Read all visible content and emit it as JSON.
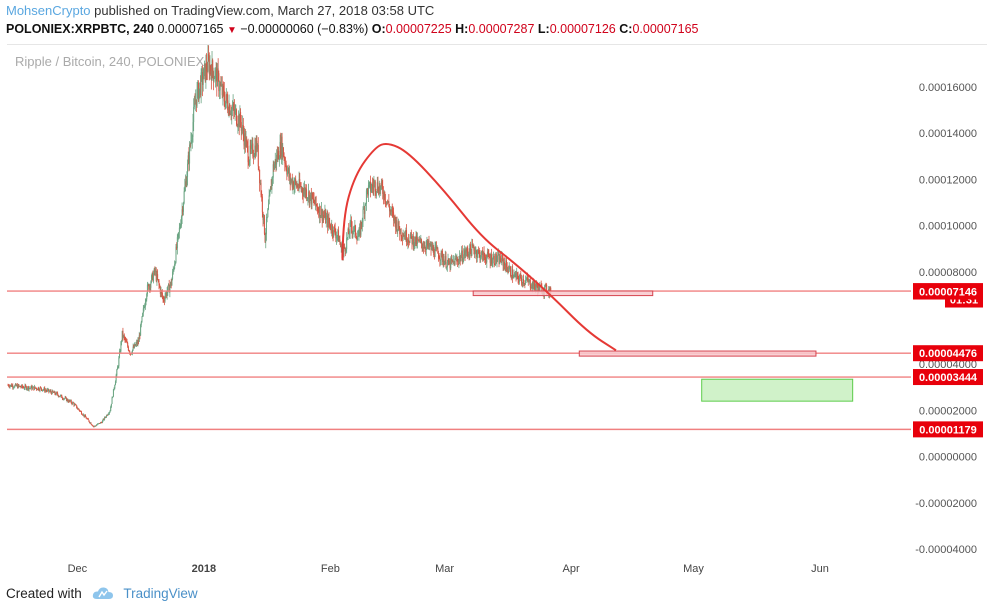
{
  "header": {
    "author": "MohsenCrypto",
    "published_text": "published on TradingView.com, March 27, 2018 03:58 UTC",
    "symbol": "POLONIEX:XRPBTC, 240",
    "last_price": "0.00007165",
    "arrow": "▼",
    "change": "−0.00000060 (−0.83%)",
    "open_label": "O:",
    "open": "0.00007225",
    "high_label": "H:",
    "high": "0.00007287",
    "low_label": "L:",
    "low": "0.00007126",
    "close_label": "C:",
    "close": "0.00007165"
  },
  "footer": {
    "created_with": "Created with",
    "brand": "TradingView"
  },
  "colors": {
    "up": "#6ba583",
    "down": "#d75442",
    "level_line": "#f08080",
    "label_bg": "#e8000b",
    "zone_red_fill": "#f8c8cc",
    "zone_green_fill": "#c8f0c0",
    "curve": "#e53935"
  },
  "chart_data": {
    "type": "candlestick",
    "title": "Ripple / Bitcoin, 240, POLONIEX",
    "ylim": [
      -4.5e-05,
      0.000172
    ],
    "y_ticks": [
      "0.00016000",
      "0.00014000",
      "0.00012000",
      "0.00010000",
      "0.00008000",
      "0.00004000",
      "0.00002000",
      "0.00000000",
      "-0.00002000",
      "-0.00004000"
    ],
    "y_tick_values": [
      0.00016,
      0.00014,
      0.00012,
      0.0001,
      8e-05,
      4e-05,
      2e-05,
      0.0,
      -2e-05,
      -4e-05
    ],
    "x_ticks": [
      "Dec",
      "2018",
      "Feb",
      "Mar",
      "Apr",
      "May",
      "Jun"
    ],
    "x_tick_dates": [
      "2017-12-01",
      "2018-01-01",
      "2018-02-01",
      "2018-03-01",
      "2018-04-01",
      "2018-05-01",
      "2018-06-01"
    ],
    "x_range": [
      "2017-11-14",
      "2018-06-13"
    ],
    "price_path": [
      [
        "2017-11-14",
        3.1e-05
      ],
      [
        "2017-11-18",
        3e-05
      ],
      [
        "2017-11-22",
        2.95e-05
      ],
      [
        "2017-11-26",
        2.7e-05
      ],
      [
        "2017-11-30",
        2.3e-05
      ],
      [
        "2017-12-03",
        1.7e-05
      ],
      [
        "2017-12-05",
        1.3e-05
      ],
      [
        "2017-12-07",
        1.5e-05
      ],
      [
        "2017-12-09",
        2e-05
      ],
      [
        "2017-12-11",
        4e-05
      ],
      [
        "2017-12-12",
        5.3e-05
      ],
      [
        "2017-12-14",
        4.5e-05
      ],
      [
        "2017-12-16",
        5e-05
      ],
      [
        "2017-12-18",
        7.2e-05
      ],
      [
        "2017-12-20",
        8e-05
      ],
      [
        "2017-12-22",
        6.8e-05
      ],
      [
        "2017-12-24",
        7.5e-05
      ],
      [
        "2017-12-26",
        9.8e-05
      ],
      [
        "2017-12-28",
        0.000125
      ],
      [
        "2017-12-30",
        0.000155
      ],
      [
        "2018-01-02",
        0.00017
      ],
      [
        "2018-01-04",
        0.000165
      ],
      [
        "2018-01-06",
        0.000155
      ],
      [
        "2018-01-08",
        0.00015
      ],
      [
        "2018-01-10",
        0.000145
      ],
      [
        "2018-01-12",
        0.00013
      ],
      [
        "2018-01-14",
        0.000135
      ],
      [
        "2018-01-16",
        9.5e-05
      ],
      [
        "2018-01-18",
        0.000125
      ],
      [
        "2018-01-20",
        0.000135
      ],
      [
        "2018-01-22",
        0.00012
      ],
      [
        "2018-01-24",
        0.000117
      ],
      [
        "2018-01-26",
        0.000115
      ],
      [
        "2018-01-28",
        0.00011
      ],
      [
        "2018-01-30",
        0.000105
      ],
      [
        "2018-02-01",
        0.0001
      ],
      [
        "2018-02-03",
        9.5e-05
      ],
      [
        "2018-02-04",
        8.7e-05
      ],
      [
        "2018-02-06",
        0.0001
      ],
      [
        "2018-02-08",
        9.5e-05
      ],
      [
        "2018-02-10",
        0.000115
      ],
      [
        "2018-02-12",
        0.000118
      ],
      [
        "2018-02-14",
        0.000115
      ],
      [
        "2018-02-16",
        0.000105
      ],
      [
        "2018-02-18",
        9.8e-05
      ],
      [
        "2018-02-20",
        9.5e-05
      ],
      [
        "2018-02-22",
        9.3e-05
      ],
      [
        "2018-02-25",
        9.1e-05
      ],
      [
        "2018-02-28",
        8.7e-05
      ],
      [
        "2018-03-02",
        8.3e-05
      ],
      [
        "2018-03-04",
        8.5e-05
      ],
      [
        "2018-03-06",
        8.8e-05
      ],
      [
        "2018-03-08",
        9e-05
      ],
      [
        "2018-03-10",
        8.7e-05
      ],
      [
        "2018-03-12",
        8.6e-05
      ],
      [
        "2018-03-15",
        8.5e-05
      ],
      [
        "2018-03-18",
        7.8e-05
      ],
      [
        "2018-03-21",
        7.6e-05
      ],
      [
        "2018-03-24",
        7.3e-05
      ],
      [
        "2018-03-27",
        7.17e-05
      ]
    ],
    "horizontal_levels": [
      7.165e-05,
      4.476e-05,
      3.444e-05,
      1.179e-05
    ],
    "level_labels": [
      "0.00007165",
      "0.00004476",
      "0.00003444",
      "0.00001179"
    ],
    "extra_labels": [
      {
        "text": "01:31",
        "value": 6.8e-05
      },
      {
        "text": "0.00007146",
        "value": 7.146e-05
      }
    ],
    "zones": [
      {
        "color": "red",
        "x": [
          "2018-03-08",
          "2018-04-21"
        ],
        "y": [
          6.97e-05,
          7.17e-05
        ]
      },
      {
        "color": "red",
        "x": [
          "2018-04-03",
          "2018-05-31"
        ],
        "y": [
          4.35e-05,
          4.57e-05
        ]
      },
      {
        "color": "green",
        "x": [
          "2018-05-03",
          "2018-06-09"
        ],
        "y": [
          2.4e-05,
          3.35e-05
        ]
      }
    ],
    "projection_curve": [
      [
        "2018-02-04",
        8.5e-05
      ],
      [
        "2018-02-04",
        0.000103
      ],
      [
        "2018-02-07",
        0.000122
      ],
      [
        "2018-02-12",
        0.000134
      ],
      [
        "2018-02-15",
        0.000136
      ],
      [
        "2018-02-20",
        0.000132
      ],
      [
        "2018-03-01",
        0.000115
      ],
      [
        "2018-03-10",
        9.5e-05
      ],
      [
        "2018-03-18",
        8.4e-05
      ],
      [
        "2018-03-27",
        7e-05
      ],
      [
        "2018-04-05",
        5.4e-05
      ],
      [
        "2018-04-12",
        4.6e-05
      ]
    ]
  }
}
